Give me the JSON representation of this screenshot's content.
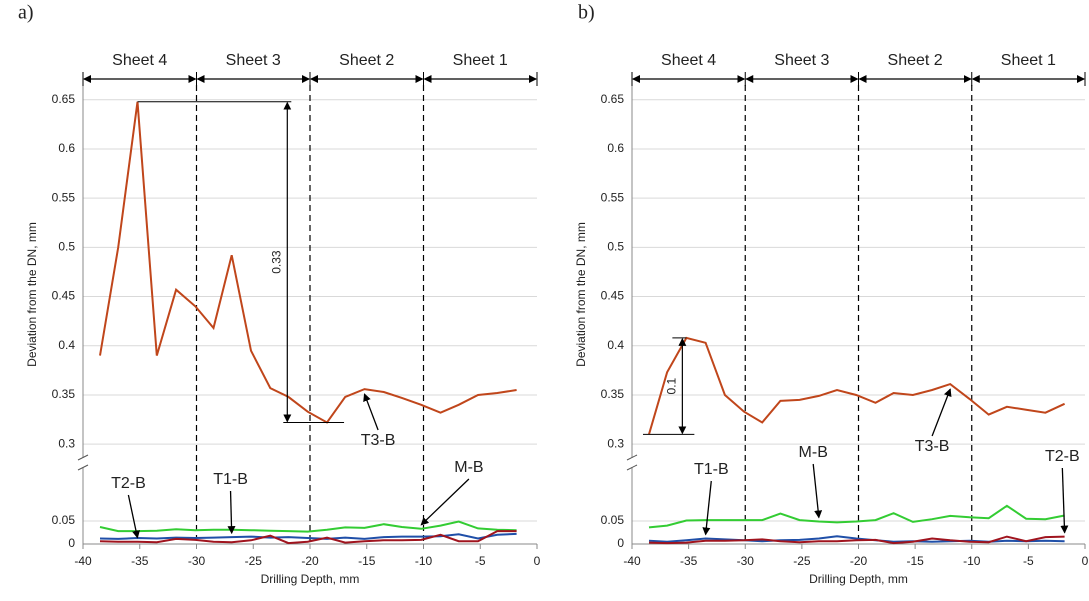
{
  "chart_data": [
    {
      "type": "line",
      "panel_label": "a)",
      "x_label": "Drilling Depth, mm",
      "y_label": "Deviation from the DN, mm",
      "xlim": [
        -40,
        0
      ],
      "xticks": [
        -40,
        -35,
        -30,
        -25,
        -20,
        -15,
        -10,
        -5,
        0
      ],
      "ylim": [
        0,
        0.665
      ],
      "ybreak": [
        0.15,
        0.29
      ],
      "yticks": [
        0,
        0.05,
        0.3,
        0.35,
        0.4,
        0.45,
        0.5,
        0.55,
        0.6,
        0.65
      ],
      "grid": true,
      "sheets": [
        {
          "label": "Sheet 4",
          "from": -40,
          "to": -30
        },
        {
          "label": "Sheet 3",
          "from": -30,
          "to": -20
        },
        {
          "label": "Sheet 2",
          "from": -20,
          "to": -10
        },
        {
          "label": "Sheet 1",
          "from": -10,
          "to": 0
        }
      ],
      "dimension_label": "0.33",
      "x": [
        -38.5,
        -36.9,
        -35.2,
        -33.5,
        -31.8,
        -30.1,
        -28.5,
        -26.9,
        -25.2,
        -23.5,
        -21.9,
        -20.2,
        -18.5,
        -16.9,
        -15.2,
        -13.5,
        -11.9,
        -10.2,
        -8.5,
        -6.9,
        -5.2,
        -3.5,
        -1.8
      ],
      "series": [
        {
          "name": "T3-B",
          "color": "#c0461b",
          "values": [
            0.39,
            0.5,
            0.648,
            0.39,
            0.457,
            0.44,
            0.418,
            0.492,
            0.395,
            0.357,
            0.348,
            0.333,
            0.322,
            0.348,
            0.356,
            0.353,
            0.347,
            0.34,
            0.332,
            0.34,
            0.35,
            0.352,
            0.355
          ]
        },
        {
          "name": "M-B",
          "color": "#33cc33",
          "values": [
            0.037,
            0.028,
            0.028,
            0.029,
            0.032,
            0.03,
            0.031,
            0.031,
            0.03,
            0.029,
            0.028,
            0.027,
            0.031,
            0.036,
            0.035,
            0.043,
            0.037,
            0.033,
            0.04,
            0.049,
            0.034,
            0.031,
            0.03
          ]
        },
        {
          "name": "T1-B",
          "color": "#1f4fa8",
          "values": [
            0.012,
            0.011,
            0.013,
            0.012,
            0.014,
            0.013,
            0.014,
            0.015,
            0.016,
            0.014,
            0.015,
            0.013,
            0.011,
            0.014,
            0.011,
            0.015,
            0.016,
            0.016,
            0.017,
            0.021,
            0.012,
            0.02,
            0.022
          ]
        },
        {
          "name": "T2-B",
          "color": "#a0141e",
          "values": [
            0.006,
            0.005,
            0.005,
            0.004,
            0.011,
            0.009,
            0.005,
            0.004,
            0.008,
            0.018,
            0.002,
            0.005,
            0.014,
            0.003,
            0.006,
            0.008,
            0.008,
            0.009,
            0.02,
            0.006,
            0.006,
            0.028,
            0.028
          ]
        }
      ]
    },
    {
      "type": "line",
      "panel_label": "b)",
      "x_label": "Drilling Depth, mm",
      "y_label": "Deviation from the DN, mm",
      "xlim": [
        -40,
        0
      ],
      "xticks": [
        -40,
        -35,
        -30,
        -25,
        -20,
        -15,
        -10,
        -5,
        0
      ],
      "ylim": [
        0,
        0.665
      ],
      "ybreak": [
        0.15,
        0.29
      ],
      "yticks": [
        0,
        0.05,
        0.3,
        0.35,
        0.4,
        0.45,
        0.5,
        0.55,
        0.6,
        0.65
      ],
      "grid": true,
      "sheets": [
        {
          "label": "Sheet 4",
          "from": -40,
          "to": -30
        },
        {
          "label": "Sheet 3",
          "from": -30,
          "to": -20
        },
        {
          "label": "Sheet 2",
          "from": -20,
          "to": -10
        },
        {
          "label": "Sheet 1",
          "from": -10,
          "to": 0
        }
      ],
      "dimension_label": "0.1",
      "x": [
        -38.5,
        -36.9,
        -35.2,
        -33.5,
        -31.8,
        -30.1,
        -28.5,
        -26.9,
        -25.2,
        -23.5,
        -21.9,
        -20.2,
        -18.5,
        -16.9,
        -15.2,
        -13.5,
        -11.9,
        -10.2,
        -8.5,
        -6.9,
        -5.2,
        -3.5,
        -1.8
      ],
      "series": [
        {
          "name": "T3-B",
          "color": "#c0461b",
          "values": [
            0.31,
            0.373,
            0.408,
            0.403,
            0.35,
            0.333,
            0.322,
            0.344,
            0.345,
            0.349,
            0.355,
            0.35,
            0.342,
            0.352,
            0.35,
            0.355,
            0.361,
            0.346,
            0.33,
            0.338,
            0.335,
            0.332,
            0.341
          ]
        },
        {
          "name": "M-B",
          "color": "#33cc33",
          "values": [
            0.036,
            0.04,
            0.051,
            0.052,
            0.052,
            0.052,
            0.052,
            0.066,
            0.052,
            0.049,
            0.047,
            0.049,
            0.052,
            0.067,
            0.048,
            0.054,
            0.061,
            0.058,
            0.056,
            0.083,
            0.055,
            0.054,
            0.062
          ]
        },
        {
          "name": "T1-B",
          "color": "#1f4fa8",
          "values": [
            0.007,
            0.005,
            0.008,
            0.012,
            0.01,
            0.008,
            0.006,
            0.008,
            0.009,
            0.012,
            0.017,
            0.012,
            0.008,
            0.005,
            0.006,
            0.005,
            0.006,
            0.007,
            0.005,
            0.007,
            0.006,
            0.007,
            0.006
          ]
        },
        {
          "name": "T2-B",
          "color": "#a0141e",
          "values": [
            0.003,
            0.002,
            0.003,
            0.007,
            0.007,
            0.008,
            0.01,
            0.006,
            0.004,
            0.006,
            0.006,
            0.008,
            0.009,
            0.002,
            0.005,
            0.012,
            0.008,
            0.005,
            0.004,
            0.016,
            0.006,
            0.015,
            0.016
          ]
        }
      ]
    }
  ]
}
